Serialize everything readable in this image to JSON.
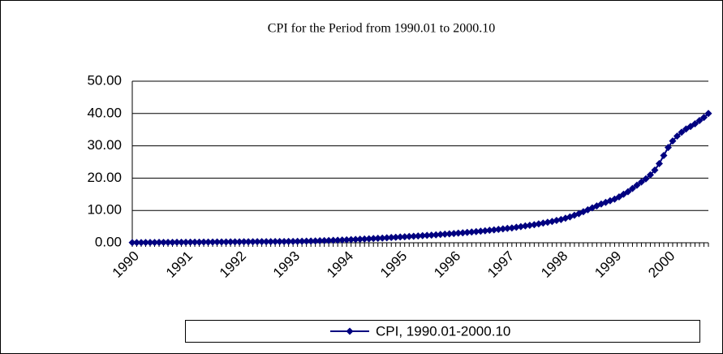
{
  "chart_data": {
    "type": "line",
    "title": "CPI for the Period from 1990.01 to 2000.10",
    "categories": [
      "1990",
      null,
      null,
      null,
      null,
      null,
      null,
      null,
      null,
      null,
      null,
      null,
      "1991",
      null,
      null,
      null,
      null,
      null,
      null,
      null,
      null,
      null,
      null,
      null,
      "1992",
      null,
      null,
      null,
      null,
      null,
      null,
      null,
      null,
      null,
      null,
      null,
      "1993",
      null,
      null,
      null,
      null,
      null,
      null,
      null,
      null,
      null,
      null,
      null,
      "1994",
      null,
      null,
      null,
      null,
      null,
      null,
      null,
      null,
      null,
      null,
      null,
      "1995",
      null,
      null,
      null,
      null,
      null,
      null,
      null,
      null,
      null,
      null,
      null,
      "1996",
      null,
      null,
      null,
      null,
      null,
      null,
      null,
      null,
      null,
      null,
      null,
      "1997",
      null,
      null,
      null,
      null,
      null,
      null,
      null,
      null,
      null,
      null,
      null,
      "1998",
      null,
      null,
      null,
      null,
      null,
      null,
      null,
      null,
      null,
      null,
      null,
      "1999",
      null,
      null,
      null,
      null,
      null,
      null,
      null,
      null,
      null,
      null,
      null,
      "2000",
      null,
      null,
      null,
      null,
      null,
      null,
      null,
      null,
      null
    ],
    "series": [
      {
        "name": "CPI, 1990.01-2000.10",
        "color": "#000080",
        "values": [
          0.05,
          0.06,
          0.07,
          0.08,
          0.09,
          0.1,
          0.11,
          0.12,
          0.13,
          0.14,
          0.15,
          0.16,
          0.17,
          0.18,
          0.19,
          0.2,
          0.21,
          0.22,
          0.23,
          0.24,
          0.25,
          0.26,
          0.27,
          0.28,
          0.29,
          0.3,
          0.31,
          0.32,
          0.33,
          0.34,
          0.35,
          0.36,
          0.37,
          0.38,
          0.39,
          0.4,
          0.42,
          0.45,
          0.48,
          0.51,
          0.54,
          0.58,
          0.62,
          0.66,
          0.7,
          0.75,
          0.8,
          0.86,
          0.92,
          0.98,
          1.04,
          1.1,
          1.17,
          1.24,
          1.31,
          1.38,
          1.46,
          1.54,
          1.62,
          1.7,
          1.78,
          1.86,
          1.94,
          2.02,
          2.1,
          2.19,
          2.28,
          2.37,
          2.46,
          2.56,
          2.66,
          2.76,
          2.86,
          2.97,
          3.08,
          3.2,
          3.32,
          3.45,
          3.58,
          3.72,
          3.86,
          4.0,
          4.15,
          4.3,
          4.45,
          4.6,
          4.8,
          5.0,
          5.2,
          5.4,
          5.6,
          5.85,
          6.1,
          6.35,
          6.6,
          6.9,
          7.2,
          7.6,
          8.0,
          8.5,
          9.0,
          9.6,
          10.2,
          10.8,
          11.4,
          12.0,
          12.5,
          13.0,
          13.5,
          14.2,
          15.0,
          15.8,
          16.8,
          17.8,
          18.8,
          19.8,
          21.0,
          22.5,
          24.5,
          27.0,
          29.5,
          31.5,
          33.0,
          34.2,
          35.2,
          36.0,
          36.8,
          37.8,
          38.8,
          40.0
        ]
      }
    ],
    "ylim": [
      0,
      50
    ],
    "yticks": [
      {
        "value": 0,
        "label": "0.00"
      },
      {
        "value": 10,
        "label": "10.00"
      },
      {
        "value": 20,
        "label": "20.00"
      },
      {
        "value": 30,
        "label": "30.00"
      },
      {
        "value": 40,
        "label": "40.00"
      },
      {
        "value": 50,
        "label": "50.00"
      }
    ],
    "grid": true,
    "legend": "bottom"
  }
}
